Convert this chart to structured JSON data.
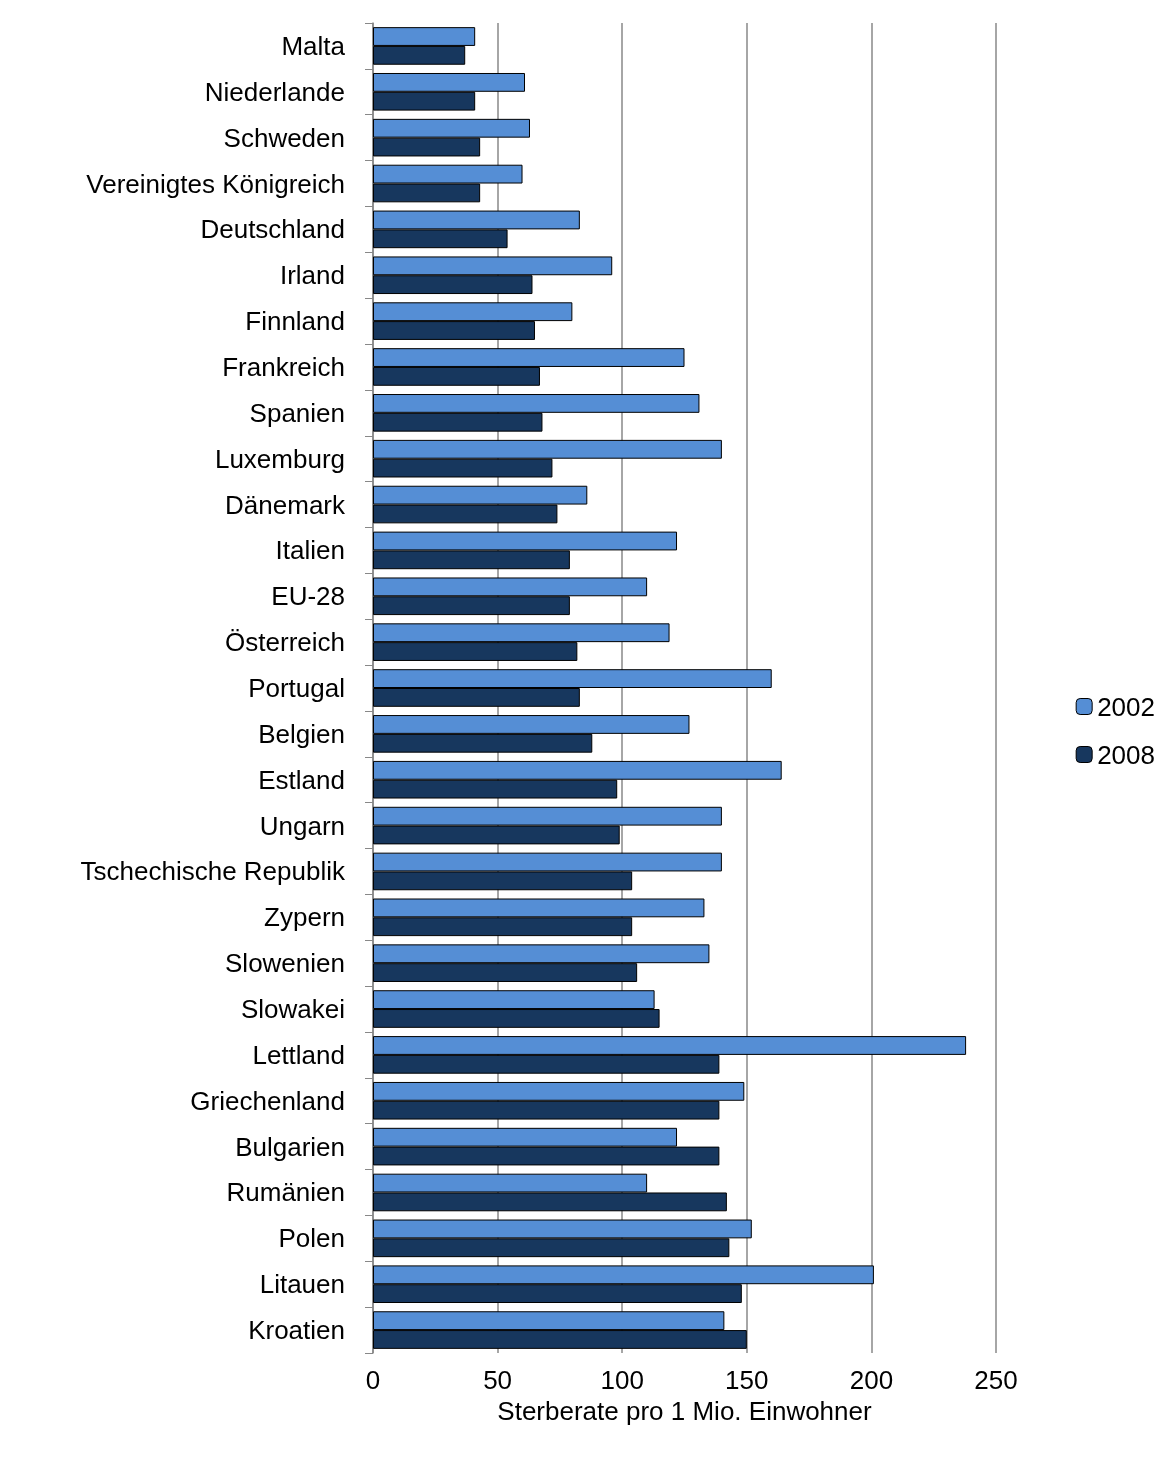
{
  "chart_data": {
    "type": "bar",
    "orientation": "horizontal",
    "xlabel": "Sterberate pro 1 Mio. Einwohner",
    "categories": [
      "Malta",
      "Niederlande",
      "Schweden",
      "Vereinigtes Königreich",
      "Deutschland",
      "Irland",
      "Finnland",
      "Frankreich",
      "Spanien",
      "Luxemburg",
      "Dänemark",
      "Italien",
      "EU-28",
      "Österreich",
      "Portugal",
      "Belgien",
      "Estland",
      "Ungarn",
      "Tschechische Republik",
      "Zypern",
      "Slowenien",
      "Slowakei",
      "Lettland",
      "Griechenland",
      "Bulgarien",
      "Rumänien",
      "Polen",
      "Litauen",
      "Kroatien"
    ],
    "series": [
      {
        "name": "2002",
        "color": "#558ed5",
        "values": [
          41,
          61,
          63,
          60,
          83,
          96,
          80,
          125,
          131,
          140,
          86,
          122,
          110,
          119,
          160,
          127,
          164,
          140,
          140,
          133,
          135,
          113,
          238,
          149,
          122,
          110,
          152,
          201,
          141
        ]
      },
      {
        "name": "2008",
        "color": "#17375e",
        "values": [
          37,
          41,
          43,
          43,
          54,
          64,
          65,
          67,
          68,
          72,
          74,
          79,
          79,
          82,
          83,
          88,
          98,
          99,
          104,
          104,
          106,
          115,
          139,
          139,
          139,
          142,
          143,
          148,
          150
        ]
      }
    ],
    "xlim": [
      0,
      250
    ],
    "xticks": [
      0,
      50,
      100,
      150,
      200,
      250
    ],
    "grid": "x",
    "legend": "right"
  }
}
